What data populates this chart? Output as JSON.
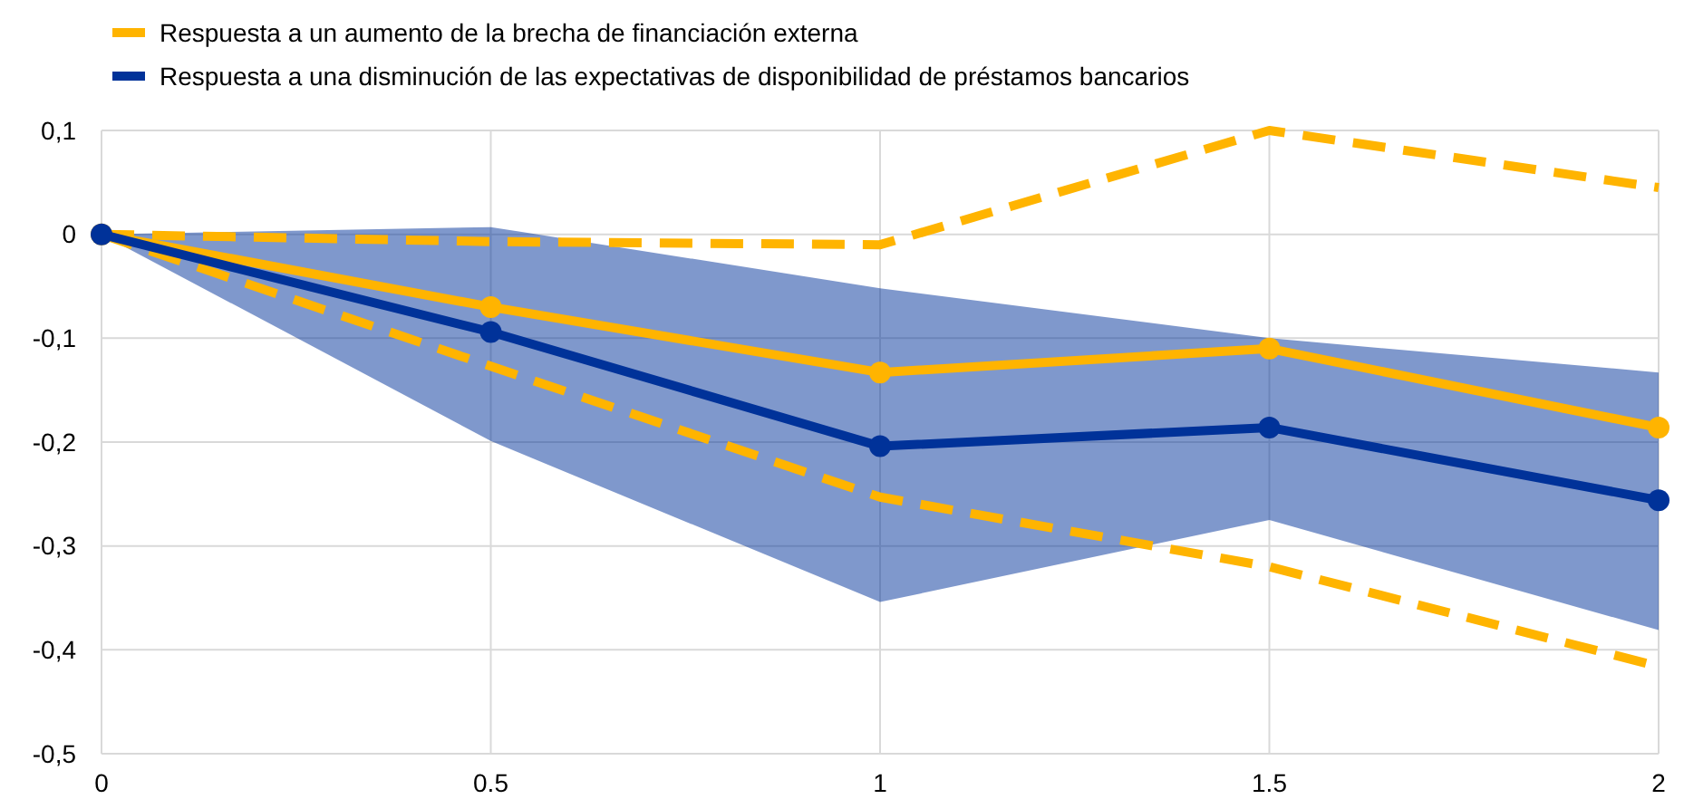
{
  "chart_data": {
    "type": "line",
    "x": [
      0,
      0.5,
      1,
      1.5,
      2
    ],
    "xlim": [
      0,
      2
    ],
    "xticks": [
      0,
      0.5,
      1,
      1.5,
      2
    ],
    "ylim": [
      -0.5,
      0.1
    ],
    "yticks": [
      {
        "value": 0.1,
        "label": "0,1"
      },
      {
        "value": 0,
        "label": "0"
      },
      {
        "value": -0.1,
        "label": "-0,1"
      },
      {
        "value": -0.2,
        "label": "-0,2"
      },
      {
        "value": -0.3,
        "label": "-0,3"
      },
      {
        "value": -0.4,
        "label": "-0,4"
      },
      {
        "value": -0.5,
        "label": "-0,5"
      }
    ],
    "grid": true,
    "legend": "top left",
    "series": [
      {
        "color": "#ffb400",
        "line_style": "dashed",
        "marker": "none",
        "values": [
          0,
          -0.007,
          -0.01,
          0.1,
          0.045
        ]
      },
      {
        "color": "#ffb400",
        "line_style": "dashed",
        "marker": "none",
        "values": [
          0,
          -0.127,
          -0.253,
          -0.32,
          -0.416
        ]
      },
      {
        "name": "Respuesta a un aumento de la brecha de financiación externa",
        "color": "#ffb400",
        "line_style": "solid",
        "marker": "circle",
        "values": [
          0,
          -0.07,
          -0.133,
          -0.11,
          -0.186
        ]
      },
      {
        "name": "Respuesta a una disminución de las expectativas de disponibilidad de préstamos bancarios",
        "color": "#003299",
        "line_style": "solid",
        "marker": "circle",
        "values": [
          0,
          -0.094,
          -0.204,
          -0.186,
          -0.256
        ],
        "lower": [
          0,
          -0.199,
          -0.354,
          -0.275,
          -0.381
        ],
        "upper": [
          0,
          0.007,
          -0.052,
          -0.1,
          -0.133
        ]
      }
    ]
  }
}
